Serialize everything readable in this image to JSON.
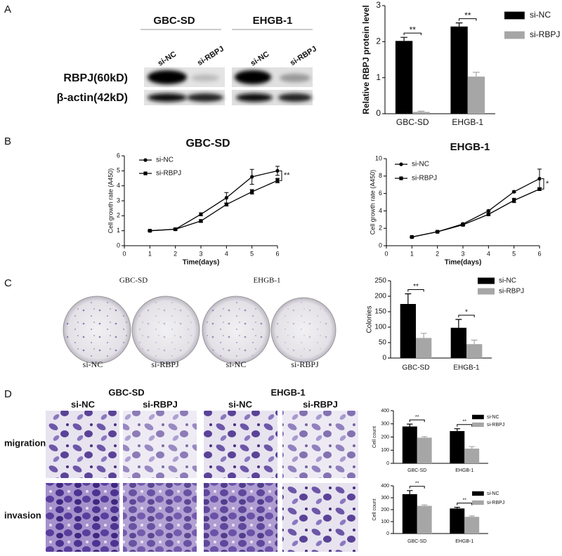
{
  "panel_labels": [
    "A",
    "B",
    "C",
    "D"
  ],
  "western_blot": {
    "groups": [
      "GBC-SD",
      "EHGB-1"
    ],
    "lanes": [
      "si-NC",
      "si-RBPJ",
      "si-NC",
      "si-RBPJ"
    ],
    "rows": [
      "RBPJ(60kD)",
      "β-actin(42kD)"
    ]
  },
  "colony_assay": {
    "groups": [
      "GBC-SD",
      "EHGB-1"
    ],
    "dishes": [
      "si-NC",
      "si-RBPJ",
      "si-NC",
      "si-RBPJ"
    ]
  },
  "transwell": {
    "groups": [
      "GBC-SD",
      "EHGB-1"
    ],
    "columns": [
      "si-NC",
      "si-RBPJ",
      "si-NC",
      "si-RBPJ"
    ],
    "rows": [
      "migration",
      "invasion"
    ]
  },
  "chart_data": [
    {
      "type": "bar",
      "ylabel": "Relative RBPJ protein level",
      "categories": [
        "GBC-SD",
        "EHGB-1"
      ],
      "series": [
        {
          "name": "si-NC",
          "color": "#000000",
          "values": [
            2.02,
            2.42
          ],
          "errors": [
            0.1,
            0.1
          ]
        },
        {
          "name": "si-RBPJ",
          "color": "#a6a6a6",
          "values": [
            0.05,
            1.03
          ],
          "errors": [
            0.02,
            0.12
          ]
        }
      ],
      "annotations": [
        "**",
        "**"
      ],
      "ylim": [
        0,
        3
      ],
      "yticks": [
        0,
        1,
        2,
        3
      ]
    },
    {
      "type": "line",
      "title": "GBC-SD",
      "xlabel": "Time(days)",
      "ylabel": "Cell growth rate (A450)",
      "x": [
        1,
        2,
        3,
        4,
        5,
        6
      ],
      "series": [
        {
          "name": "si-NC",
          "color": "#000000",
          "marker": "circle",
          "values": [
            1.0,
            1.1,
            2.1,
            3.2,
            4.6,
            5.0
          ],
          "errors": [
            0.03,
            0.05,
            0.1,
            0.35,
            0.5,
            0.3
          ]
        },
        {
          "name": "si-RBPJ",
          "color": "#000000",
          "marker": "square",
          "values": [
            1.0,
            1.1,
            1.65,
            2.75,
            3.6,
            4.35
          ],
          "errors": [
            0.03,
            0.05,
            0.08,
            0.1,
            0.15,
            0.15
          ]
        }
      ],
      "annotation": "**",
      "xlim": [
        0,
        6
      ],
      "xticks": [
        0,
        1,
        2,
        3,
        4,
        5,
        6
      ],
      "ylim": [
        0,
        6
      ],
      "yticks": [
        0,
        1,
        2,
        3,
        4,
        5,
        6
      ]
    },
    {
      "type": "line",
      "title": "EHGB-1",
      "xlabel": "Time(days)",
      "ylabel": "Cell growth rate (A450)",
      "x": [
        1,
        2,
        3,
        4,
        5,
        6
      ],
      "series": [
        {
          "name": "si-NC",
          "color": "#000000",
          "marker": "circle",
          "values": [
            1.0,
            1.6,
            2.5,
            4.0,
            6.2,
            7.7
          ],
          "errors": [
            0.05,
            0.05,
            0.1,
            0.1,
            0.1,
            1.1
          ]
        },
        {
          "name": "si-RBPJ",
          "color": "#000000",
          "marker": "square",
          "values": [
            1.0,
            1.6,
            2.4,
            3.6,
            5.2,
            6.5
          ],
          "errors": [
            0.05,
            0.05,
            0.1,
            0.1,
            0.25,
            0.15
          ]
        }
      ],
      "annotation": "*",
      "xlim": [
        0,
        6
      ],
      "xticks": [
        0,
        1,
        2,
        3,
        4,
        5,
        6
      ],
      "ylim": [
        0,
        10
      ],
      "yticks": [
        0,
        2,
        4,
        6,
        8,
        10
      ]
    },
    {
      "type": "bar",
      "ylabel": "Colonies",
      "categories": [
        "GBC-SD",
        "EHGB-1"
      ],
      "series": [
        {
          "name": "si-NC",
          "color": "#000000",
          "values": [
            175,
            98
          ],
          "errors": [
            33,
            27
          ]
        },
        {
          "name": "si-RBPJ",
          "color": "#a6a6a6",
          "values": [
            65,
            45
          ],
          "errors": [
            15,
            13
          ]
        }
      ],
      "annotations": [
        "**",
        "*"
      ],
      "ylim": [
        0,
        250
      ],
      "yticks": [
        0,
        50,
        100,
        150,
        200,
        250
      ]
    },
    {
      "type": "bar",
      "ylabel": "Cell count",
      "categories": [
        "GBC-SD",
        "EHGB-1"
      ],
      "series": [
        {
          "name": "si-NC",
          "color": "#000000",
          "values": [
            280,
            245
          ],
          "errors": [
            18,
            18
          ]
        },
        {
          "name": "si-RBPJ",
          "color": "#a6a6a6",
          "values": [
            195,
            112
          ],
          "errors": [
            8,
            15
          ]
        }
      ],
      "annotations": [
        "**",
        "**"
      ],
      "ylim": [
        0,
        400
      ],
      "yticks": [
        0,
        100,
        200,
        300,
        400
      ]
    },
    {
      "type": "bar",
      "ylabel": "Cell count",
      "categories": [
        "GBC-SD",
        "EHGB-1"
      ],
      "series": [
        {
          "name": "si-NC",
          "color": "#000000",
          "values": [
            330,
            210
          ],
          "errors": [
            30,
            10
          ]
        },
        {
          "name": "si-RBPJ",
          "color": "#a6a6a6",
          "values": [
            232,
            140
          ],
          "errors": [
            8,
            8
          ]
        }
      ],
      "annotations": [
        "**",
        "**"
      ],
      "ylim": [
        0,
        400
      ],
      "yticks": [
        0,
        100,
        200,
        300,
        400
      ]
    }
  ]
}
